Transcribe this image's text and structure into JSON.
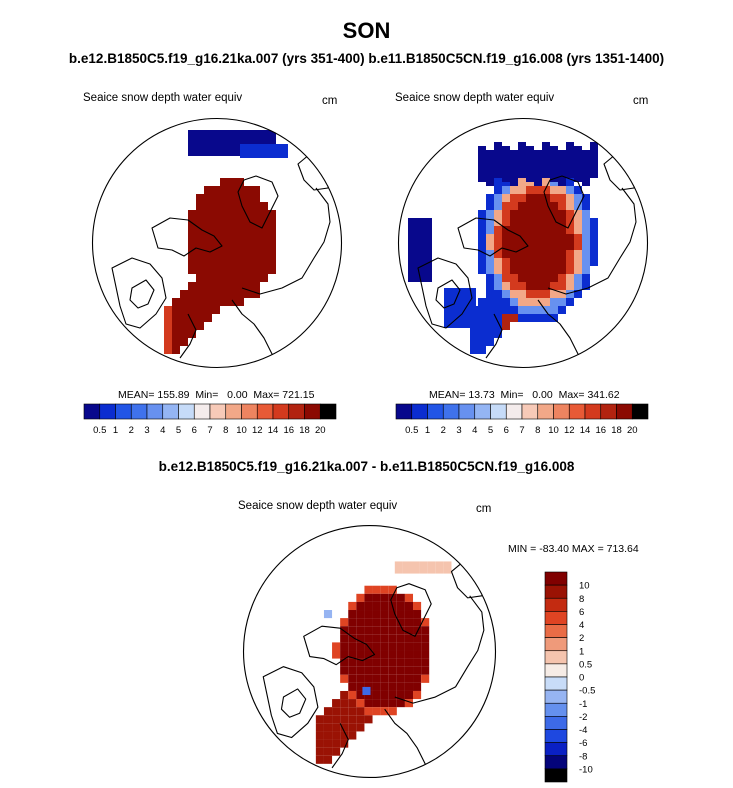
{
  "page": {
    "title": "SON",
    "subtitle": "b.e12.B1850C5.f19_g16.21ka.007 (yrs 351-400) b.e11.B1850C5CN.f19_g16.008 (yrs 1351-1400)",
    "diff_title": "b.e12.B1850C5.f19_g16.21ka.007 - b.e11.B1850C5CN.f19_g16.008"
  },
  "colors": {
    "levels": [
      "#08088c",
      "#0b2dd0",
      "#2255e6",
      "#3f72ec",
      "#6791f0",
      "#94b5f4",
      "#c6dbf8",
      "#f4ecec",
      "#f7cab8",
      "#f2a888",
      "#ee8460",
      "#e85a36",
      "#d33a1e",
      "#b22310",
      "#8b0a02"
    ],
    "diverging": [
      "#04047a",
      "#0a20c4",
      "#1e48e0",
      "#3d6ae8",
      "#6590ee",
      "#96b4f2",
      "#c8dcf8",
      "#f6ece6",
      "#f5c4ae",
      "#ef9a7a",
      "#e96c46",
      "#df4423",
      "#c32b11",
      "#9a1204",
      "#800000"
    ]
  },
  "chart_data": [
    {
      "type": "heatmap",
      "projection": "north polar stereographic",
      "label": "Seaice snow depth water equiv",
      "units": "cm",
      "stats": {
        "mean": 155.89,
        "min": 0.0,
        "max": 721.15
      },
      "stats_text": "MEAN= 155.89  Min=   0.00  Max= 721.15",
      "colorbar": {
        "orientation": "horizontal",
        "levels": [
          "0.5",
          "1",
          "2",
          "3",
          "4",
          "5",
          "6",
          "7",
          "8",
          "10",
          "12",
          "14",
          "16",
          "18",
          "20"
        ]
      }
    },
    {
      "type": "heatmap",
      "projection": "north polar stereographic",
      "label": "Seaice snow depth water equiv",
      "units": "cm",
      "stats": {
        "mean": 13.73,
        "min": 0.0,
        "max": 341.62
      },
      "stats_text": "MEAN= 13.73  Min=   0.00  Max= 341.62",
      "colorbar": {
        "orientation": "horizontal",
        "levels": [
          "0.5",
          "1",
          "2",
          "3",
          "4",
          "5",
          "6",
          "7",
          "8",
          "10",
          "12",
          "14",
          "16",
          "18",
          "20"
        ]
      }
    },
    {
      "type": "heatmap",
      "projection": "north polar stereographic",
      "label": "Seaice snow depth water equiv",
      "units": "cm",
      "stats": {
        "min": -83.4,
        "max": 713.64
      },
      "stats_text": "MIN = -83.40 MAX = 713.64",
      "colorbar": {
        "orientation": "vertical",
        "levels": [
          "10",
          "8",
          "6",
          "4",
          "2",
          "1",
          "0.5",
          "0",
          "-0.5",
          "-1",
          "-2",
          "-4",
          "-6",
          "-8",
          "-10"
        ]
      }
    }
  ]
}
